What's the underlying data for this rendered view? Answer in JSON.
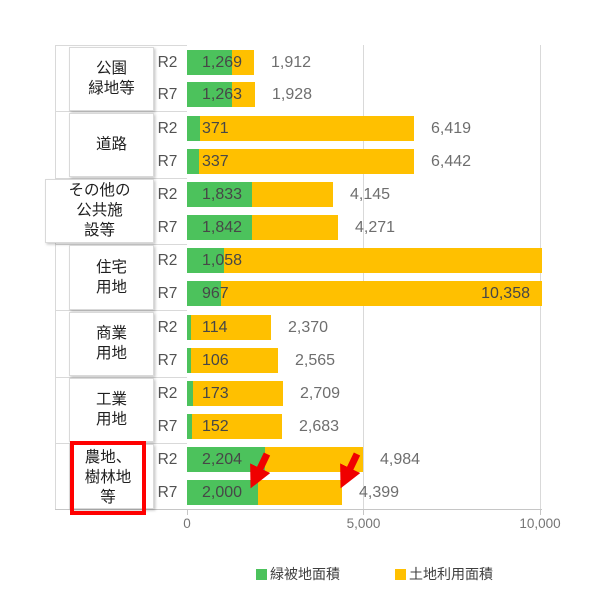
{
  "chart_data": {
    "type": "bar",
    "orientation": "horizontal",
    "x_axis": {
      "tick_labels": [
        "0",
        "5,000",
        "10,000"
      ],
      "tick_values": [
        0,
        5000,
        10000
      ],
      "gridlines": true,
      "max_visible": 10050
    },
    "legend": {
      "position": "bottom",
      "entries": [
        {
          "label": "緑被地面積",
          "color": "#4CC25C"
        },
        {
          "label": "土地利用面積",
          "color": "#FFC000"
        }
      ]
    },
    "groups": [
      {
        "label": "公園緑地等",
        "label_lines": [
          "公園",
          "緑地等"
        ],
        "rows": [
          {
            "period": "R2",
            "green": 1269,
            "green_label": "1,269",
            "total": 1912,
            "total_label": "1,912",
            "total_label_pos": "outside",
            "overflow": false
          },
          {
            "period": "R7",
            "green": 1263,
            "green_label": "1,263",
            "total": 1928,
            "total_label": "1,928",
            "total_label_pos": "outside",
            "overflow": false
          }
        ]
      },
      {
        "label": "道路",
        "label_lines": [
          "道路"
        ],
        "rows": [
          {
            "period": "R2",
            "green": 371,
            "green_label": "371",
            "total": 6419,
            "total_label": "6,419",
            "total_label_pos": "outside",
            "overflow": false
          },
          {
            "period": "R7",
            "green": 337,
            "green_label": "337",
            "total": 6442,
            "total_label": "6,442",
            "total_label_pos": "outside",
            "overflow": false
          }
        ]
      },
      {
        "label": "その他の公共施設等",
        "label_lines": [
          "その他の",
          "公共施",
          "設等"
        ],
        "rows": [
          {
            "period": "R2",
            "green": 1833,
            "green_label": "1,833",
            "total": 4145,
            "total_label": "4,145",
            "total_label_pos": "outside",
            "overflow": false
          },
          {
            "period": "R7",
            "green": 1842,
            "green_label": "1,842",
            "total": 4271,
            "total_label": "4,271",
            "total_label_pos": "outside",
            "overflow": false
          }
        ]
      },
      {
        "label": "住宅用地",
        "label_lines": [
          "住宅",
          "用地"
        ],
        "rows": [
          {
            "period": "R2",
            "green": 1058,
            "green_label": "1,058",
            "total": null,
            "total_label": "",
            "total_label_pos": "none",
            "overflow": true
          },
          {
            "period": "R7",
            "green": 967,
            "green_label": "967",
            "total": 10358,
            "total_label": "10,358",
            "total_label_pos": "inside",
            "overflow": true
          }
        ]
      },
      {
        "label": "商業用地",
        "label_lines": [
          "商業",
          "用地"
        ],
        "rows": [
          {
            "period": "R2",
            "green": 114,
            "green_label": "114",
            "total": 2370,
            "total_label": "2,370",
            "total_label_pos": "outside",
            "overflow": false
          },
          {
            "period": "R7",
            "green": 106,
            "green_label": "106",
            "total": 2565,
            "total_label": "2,565",
            "total_label_pos": "outside",
            "overflow": false
          }
        ]
      },
      {
        "label": "工業用地",
        "label_lines": [
          "工業",
          "用地"
        ],
        "rows": [
          {
            "period": "R2",
            "green": 173,
            "green_label": "173",
            "total": 2709,
            "total_label": "2,709",
            "total_label_pos": "outside",
            "overflow": false
          },
          {
            "period": "R7",
            "green": 152,
            "green_label": "152",
            "total": 2683,
            "total_label": "2,683",
            "total_label_pos": "outside",
            "overflow": false
          }
        ]
      },
      {
        "label": "農地、樹林地等",
        "label_lines": [
          "農地、",
          "樹林地",
          "等"
        ],
        "rows": [
          {
            "period": "R2",
            "green": 2204,
            "green_label": "2,204",
            "total": 4984,
            "total_label": "4,984",
            "total_label_pos": "outside",
            "overflow": false
          },
          {
            "period": "R7",
            "green": 2000,
            "green_label": "2,000",
            "total": 4399,
            "total_label": "4,399",
            "total_label_pos": "outside",
            "overflow": false
          }
        ]
      }
    ],
    "annotations": {
      "red_box": {
        "target_group": "農地、樹林地等",
        "color": "#FF0000"
      },
      "arrows": [
        {
          "color": "#FF0000",
          "meaning": "decrease",
          "group": "農地、樹林地等",
          "series": "緑被地面積",
          "from_row": "R2",
          "to_row": "R7"
        },
        {
          "color": "#FF0000",
          "meaning": "decrease",
          "group": "農地、樹林地等",
          "series": "土地利用面積",
          "from_row": "R2",
          "to_row": "R7"
        }
      ]
    },
    "colors": {
      "green": "#4CC25C",
      "yellow": "#FFC000",
      "grid": "#D9D9D9",
      "red": "#FF0000"
    }
  }
}
